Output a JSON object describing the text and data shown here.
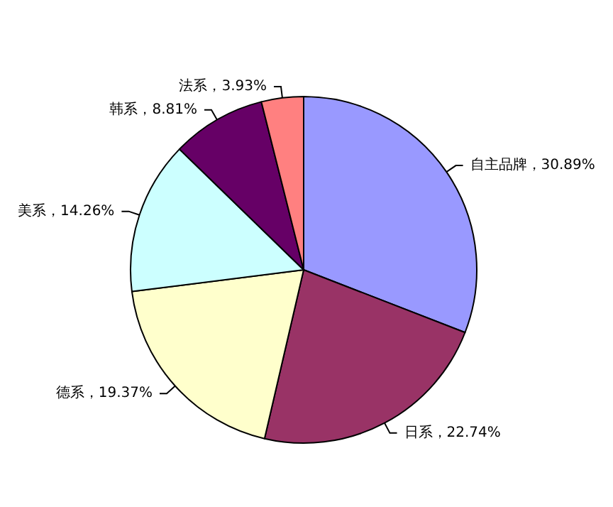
{
  "chart_data": {
    "type": "pie",
    "categories": [
      "自主品牌",
      "日系",
      "德系",
      "美系",
      "韩系",
      "法系"
    ],
    "values": [
      30.89,
      22.74,
      19.37,
      14.26,
      8.81,
      3.93
    ],
    "colors": [
      "#9999ff",
      "#993366",
      "#ffffcc",
      "#ccffff",
      "#660066",
      "#ff8080"
    ],
    "value_labels": [
      "，30.89%",
      "，22.74%",
      "，19.37%",
      "，14.26%",
      "，8.81%",
      "，3.93%"
    ],
    "legend": false
  }
}
